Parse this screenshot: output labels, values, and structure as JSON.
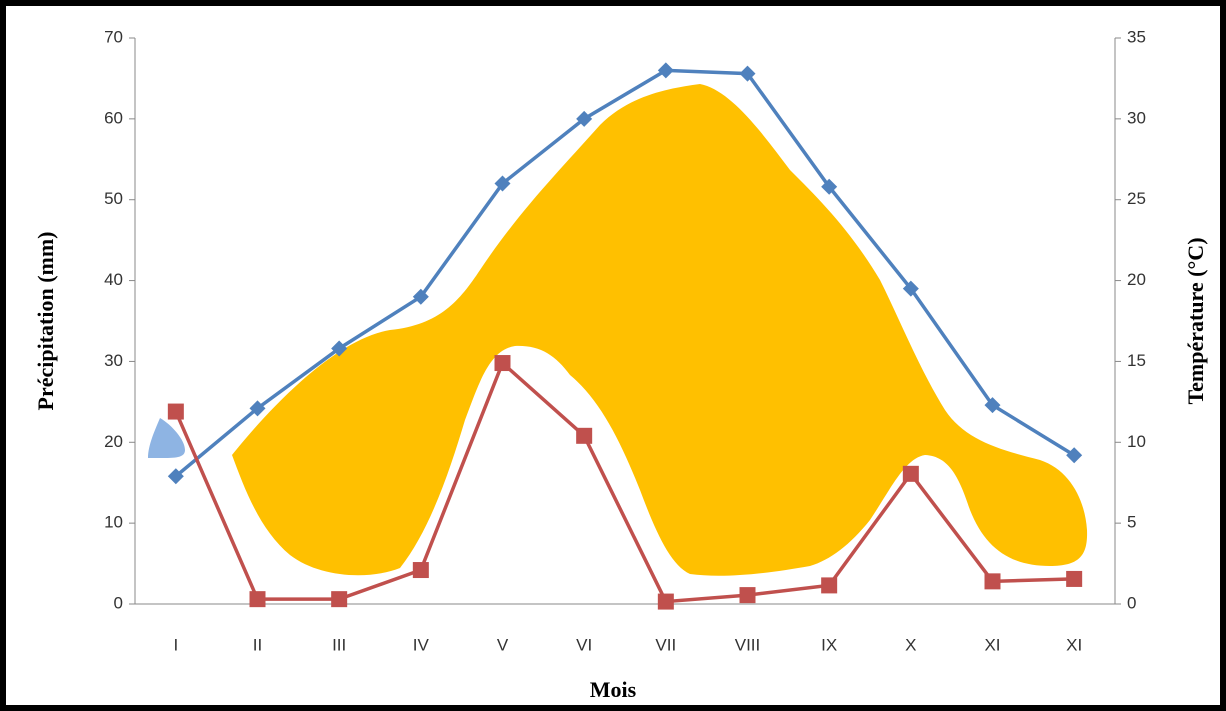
{
  "chart_data": {
    "type": "line",
    "x_label": "Mois",
    "y_label": "Précipitation (mm)",
    "y2_label": "Température (°C)",
    "categories": [
      "I",
      "II",
      "III",
      "IV",
      "V",
      "VI",
      "VII",
      "VIII",
      "IX",
      "X",
      "XI",
      "XI"
    ],
    "series": [
      {
        "color": "#4f81bd",
        "marker": "diamond",
        "axis": "y2",
        "values": [
          7.9,
          12.1,
          15.8,
          19,
          26,
          30,
          33,
          32.8,
          25.8,
          19.5,
          12.3,
          9.2
        ]
      },
      {
        "color": "#c0504d",
        "marker": "square",
        "values": [
          23.8,
          0.6,
          0.6,
          4.2,
          29.8,
          20.8,
          0.3,
          1.1,
          2.3,
          16.1,
          2.8,
          3.1
        ]
      }
    ],
    "ylim": [
      0,
      70
    ],
    "yticks": [
      0,
      10,
      20,
      30,
      40,
      50,
      60,
      70
    ],
    "y2lim": [
      0,
      35
    ],
    "y2ticks": [
      0,
      5,
      10,
      15,
      20,
      25,
      30,
      35
    ],
    "grid": false
  }
}
